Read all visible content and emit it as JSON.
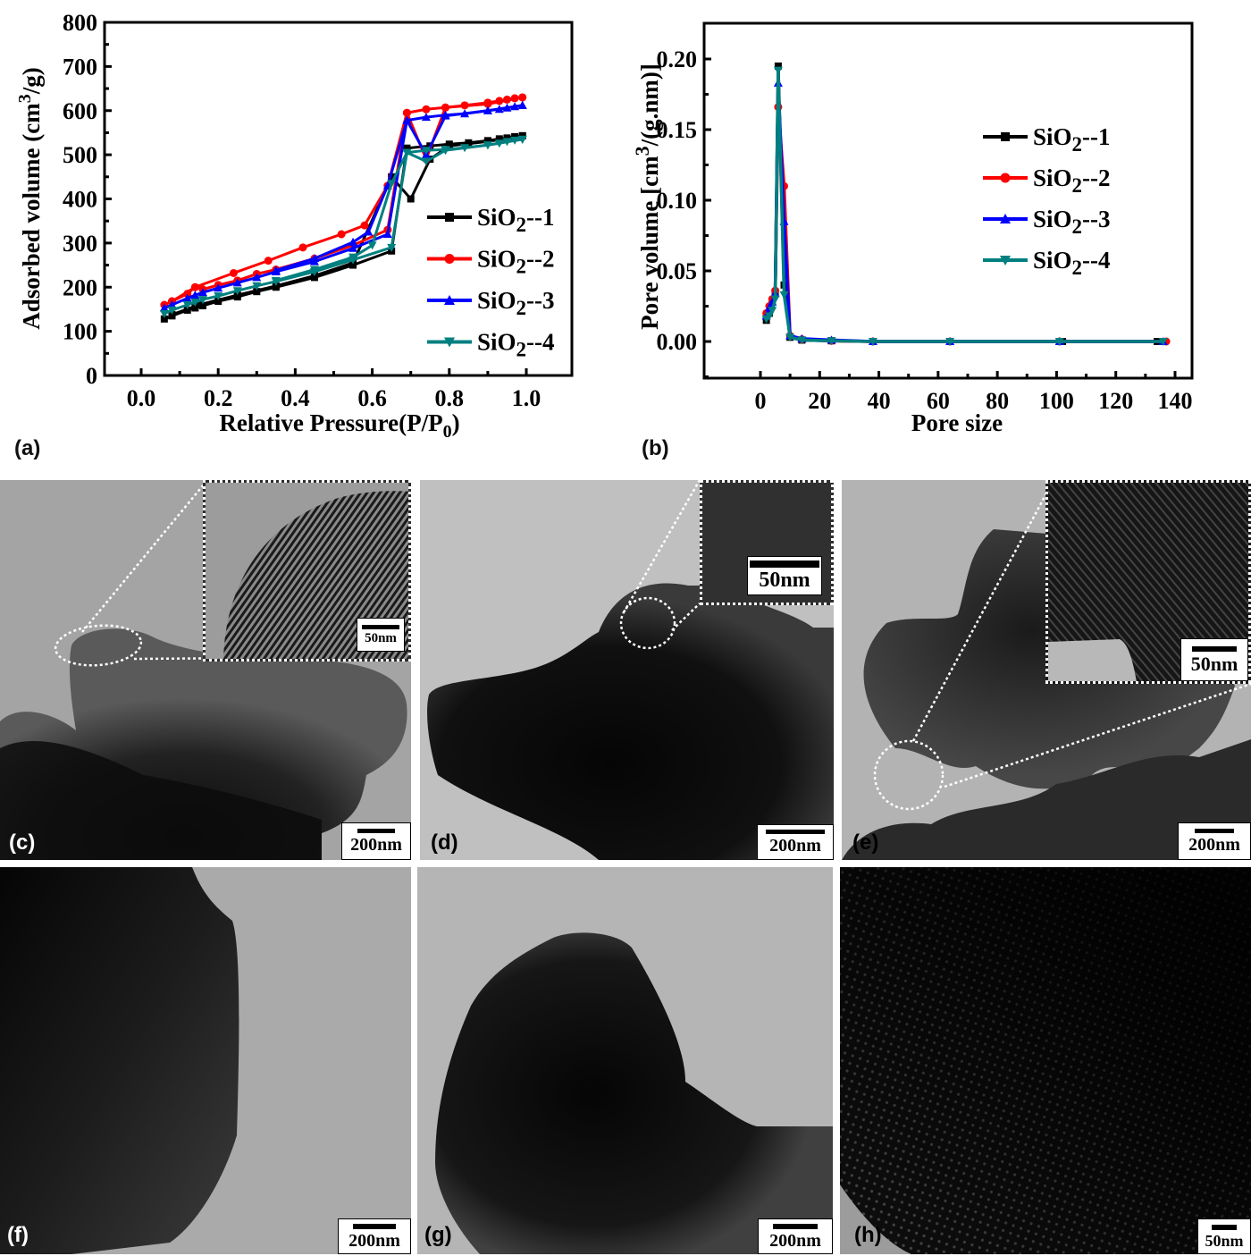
{
  "figure": {
    "panels": [
      {
        "id": "a",
        "label": "(a)"
      },
      {
        "id": "b",
        "label": "(b)"
      },
      {
        "id": "c",
        "label": "(c)",
        "scale_bar": "200nm",
        "inset_scale_bar": "50nm"
      },
      {
        "id": "d",
        "label": "(d)",
        "scale_bar": "200nm",
        "inset_scale_bar": "50nm"
      },
      {
        "id": "e",
        "label": "(e)",
        "scale_bar": "200nm",
        "inset_scale_bar": "50nm"
      },
      {
        "id": "f",
        "label": "(f)",
        "scale_bar": "200nm"
      },
      {
        "id": "g",
        "label": "(g)",
        "scale_bar": "200nm"
      },
      {
        "id": "h",
        "label": "(h)",
        "scale_bar": "50nm"
      }
    ]
  },
  "legend": [
    {
      "name": "SiO2--1",
      "base": "SiO",
      "sub": "2",
      "suffix": "--1",
      "color": "#000000",
      "marker": "square"
    },
    {
      "name": "SiO2--2",
      "base": "SiO",
      "sub": "2",
      "suffix": "--2",
      "color": "#ff0000",
      "marker": "circle"
    },
    {
      "name": "SiO2--3",
      "base": "SiO",
      "sub": "2",
      "suffix": "--3",
      "color": "#0000ff",
      "marker": "triangle-up"
    },
    {
      "name": "SiO2--4",
      "base": "SiO",
      "sub": "2",
      "suffix": "--4",
      "color": "#008080",
      "marker": "triangle-down"
    }
  ],
  "chart_data": [
    {
      "panel": "(a)",
      "type": "line",
      "title": "",
      "xlabel": "Relative Pressure(P/P0)",
      "ylabel": "Adsorbed volume (cm3/g)",
      "xlim": [
        -0.1,
        1.1
      ],
      "ylim": [
        0,
        800
      ],
      "xticks": [
        "0.0",
        "0.2",
        "0.4",
        "0.6",
        "0.8",
        "1.0"
      ],
      "yticks": [
        "0",
        "100",
        "200",
        "300",
        "400",
        "500",
        "600",
        "700",
        "800"
      ],
      "legend_position": "center-right",
      "grid": false,
      "series": [
        {
          "name": "SiO2--1",
          "color": "#000000",
          "marker": "square",
          "adsorption": {
            "x": [
              0.06,
              0.08,
              0.12,
              0.14,
              0.16,
              0.2,
              0.25,
              0.3,
              0.35,
              0.45,
              0.55,
              0.65,
              0.69,
              0.75,
              0.8,
              0.85,
              0.9,
              0.93,
              0.95,
              0.97,
              0.99
            ],
            "y": [
              128,
              135,
              148,
              153,
              158,
              168,
              178,
              190,
              200,
              222,
              250,
              282,
              515,
              520,
              524,
              527,
              532,
              536,
              538,
              541,
              543
            ]
          },
          "desorption": {
            "x": [
              0.99,
              0.9,
              0.8,
              0.75,
              0.7,
              0.65,
              0.55,
              0.45,
              0.35,
              0.25,
              0.15,
              0.08
            ],
            "y": [
              543,
              530,
              520,
              490,
              400,
              450,
              255,
              226,
              203,
              182,
              160,
              138
            ]
          }
        },
        {
          "name": "SiO2--2",
          "color": "#ff0000",
          "marker": "circle",
          "adsorption": {
            "x": [
              0.06,
              0.08,
              0.12,
              0.14,
              0.16,
              0.2,
              0.25,
              0.3,
              0.35,
              0.45,
              0.55,
              0.64,
              0.69,
              0.74,
              0.79,
              0.84,
              0.9,
              0.93,
              0.95,
              0.97,
              0.99
            ],
            "y": [
              160,
              168,
              185,
              200,
              195,
              205,
              215,
              230,
              240,
              265,
              295,
              330,
              595,
              603,
              607,
              612,
              618,
              622,
              625,
              628,
              630
            ]
          },
          "desorption": {
            "x": [
              0.99,
              0.9,
              0.79,
              0.74,
              0.69,
              0.64,
              0.58,
              0.52,
              0.42,
              0.33,
              0.24,
              0.14,
              0.08
            ],
            "y": [
              630,
              615,
              607,
              490,
              595,
              430,
              340,
              320,
              290,
              260,
              232,
              200,
              168
            ]
          }
        },
        {
          "name": "SiO2--3",
          "color": "#0000ff",
          "marker": "triangle-up",
          "adsorption": {
            "x": [
              0.06,
              0.08,
              0.12,
              0.14,
              0.16,
              0.2,
              0.25,
              0.3,
              0.35,
              0.45,
              0.55,
              0.64,
              0.69,
              0.74,
              0.79,
              0.84,
              0.9,
              0.93,
              0.95,
              0.97,
              0.99
            ],
            "y": [
              153,
              160,
              175,
              182,
              188,
              198,
              210,
              222,
              235,
              258,
              288,
              320,
              578,
              585,
              590,
              593,
              600,
              603,
              606,
              609,
              612
            ]
          },
          "desorption": {
            "x": [
              0.99,
              0.9,
              0.79,
              0.74,
              0.69,
              0.64,
              0.59,
              0.55,
              0.45,
              0.35
            ],
            "y": [
              612,
              600,
              588,
              500,
              578,
              430,
              325,
              302,
              265,
              238
            ]
          }
        },
        {
          "name": "SiO2--4",
          "color": "#008080",
          "marker": "triangle-down",
          "adsorption": {
            "x": [
              0.06,
              0.08,
              0.12,
              0.14,
              0.16,
              0.2,
              0.25,
              0.3,
              0.35,
              0.45,
              0.55,
              0.65,
              0.69,
              0.74,
              0.79,
              0.84,
              0.9,
              0.93,
              0.95,
              0.97,
              0.99
            ],
            "y": [
              140,
              148,
              160,
              166,
              172,
              180,
              192,
              203,
              213,
              235,
              262,
              290,
              505,
              510,
              512,
              516,
              522,
              526,
              530,
              533,
              535
            ]
          },
          "desorption": {
            "x": [
              0.99,
              0.9,
              0.79,
              0.74,
              0.69,
              0.65,
              0.6,
              0.55,
              0.45,
              0.35
            ],
            "y": [
              535,
              522,
              510,
              485,
              505,
              435,
              295,
              268,
              240,
              215
            ]
          }
        }
      ]
    },
    {
      "panel": "(b)",
      "type": "line",
      "title": "",
      "xlabel": "Pore size",
      "ylabel": "Pore volume [cm3/(g.nm)]",
      "xlim": [
        -10,
        150
      ],
      "ylim": [
        -0.025,
        0.225
      ],
      "xticks": [
        "0",
        "20",
        "40",
        "60",
        "80",
        "100",
        "120",
        "140"
      ],
      "yticks": [
        "0.00",
        "0.05",
        "0.10",
        "0.15",
        "0.20"
      ],
      "legend_position": "upper-right",
      "grid": false,
      "series": [
        {
          "name": "SiO2--1",
          "color": "#000000",
          "marker": "square",
          "x": [
            2,
            3,
            4,
            5,
            6,
            8,
            10,
            14,
            24,
            38,
            64,
            102,
            134
          ],
          "y": [
            0.015,
            0.02,
            0.028,
            0.035,
            0.195,
            0.04,
            0.003,
            0.001,
            0.0005,
            0.0,
            0.0,
            0.0,
            0.0
          ]
        },
        {
          "name": "SiO2--2",
          "color": "#ff0000",
          "marker": "circle",
          "x": [
            2,
            3,
            4,
            5,
            6,
            8,
            10,
            14,
            24,
            38,
            64,
            101,
            137
          ],
          "y": [
            0.02,
            0.025,
            0.03,
            0.036,
            0.166,
            0.11,
            0.004,
            0.0015,
            0.0005,
            0.0,
            0.0,
            0.0,
            0.0
          ]
        },
        {
          "name": "SiO2--3",
          "color": "#0000ff",
          "marker": "triangle-up",
          "x": [
            2,
            3,
            4,
            5,
            6,
            8,
            10,
            14,
            24,
            38,
            64,
            101,
            136
          ],
          "y": [
            0.018,
            0.024,
            0.028,
            0.034,
            0.183,
            0.085,
            0.004,
            0.002,
            0.001,
            0.0,
            0.0,
            0.0,
            0.0
          ]
        },
        {
          "name": "SiO2--4",
          "color": "#008080",
          "marker": "triangle-down",
          "x": [
            2,
            3,
            4,
            5,
            6,
            8,
            10,
            14,
            24,
            38,
            64,
            101,
            136
          ],
          "y": [
            0.016,
            0.018,
            0.022,
            0.03,
            0.192,
            0.033,
            0.003,
            0.001,
            0.0005,
            0.0,
            0.0,
            0.0,
            0.0
          ]
        }
      ]
    }
  ]
}
